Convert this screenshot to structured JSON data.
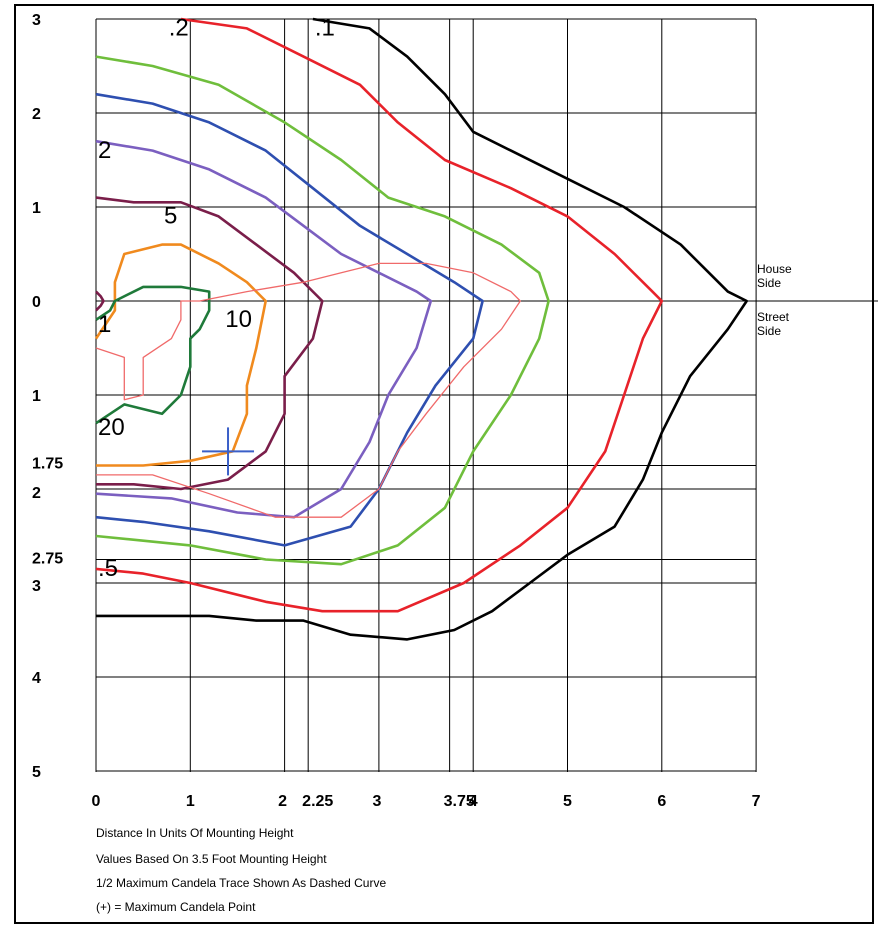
{
  "chart_data": {
    "type": "line",
    "x_ticks": [
      {
        "value": 0,
        "label": "0"
      },
      {
        "value": 1,
        "label": "1"
      },
      {
        "value": 2,
        "label": "2"
      },
      {
        "value": 2.25,
        "label": "2.25"
      },
      {
        "value": 3,
        "label": "3"
      },
      {
        "value": 3.75,
        "label": "3.75"
      },
      {
        "value": 4,
        "label": "4"
      },
      {
        "value": 5,
        "label": "5"
      },
      {
        "value": 6,
        "label": "6"
      },
      {
        "value": 7,
        "label": "7"
      }
    ],
    "y_ticks": [
      {
        "value": -3,
        "label": "3"
      },
      {
        "value": -2,
        "label": "2"
      },
      {
        "value": -1,
        "label": "1"
      },
      {
        "value": 0,
        "label": "0"
      },
      {
        "value": 1,
        "label": "1"
      },
      {
        "value": 1.75,
        "label": "1.75"
      },
      {
        "value": 2,
        "label": "2"
      },
      {
        "value": 2.75,
        "label": "2.75"
      },
      {
        "value": 3,
        "label": "3"
      },
      {
        "value": 4,
        "label": "4"
      },
      {
        "value": 5,
        "label": "5"
      }
    ],
    "xlim": [
      0,
      7.5
    ],
    "ylim": [
      -3,
      5
    ],
    "series": [
      {
        "label": ".1",
        "color": "#000000",
        "points": [
          [
            2.3,
            -3.0
          ],
          [
            2.9,
            -2.9
          ],
          [
            3.3,
            -2.6
          ],
          [
            3.7,
            -2.2
          ],
          [
            4.0,
            -1.8
          ],
          [
            4.4,
            -1.6
          ],
          [
            5.0,
            -1.3
          ],
          [
            5.6,
            -1.0
          ],
          [
            6.2,
            -0.6
          ],
          [
            6.7,
            -0.1
          ],
          [
            6.9,
            0.0
          ],
          [
            6.7,
            0.3
          ],
          [
            6.3,
            0.8
          ],
          [
            6.0,
            1.4
          ],
          [
            5.8,
            1.9
          ],
          [
            5.5,
            2.4
          ],
          [
            5.0,
            2.7
          ],
          [
            4.6,
            3.0
          ],
          [
            4.2,
            3.3
          ],
          [
            3.8,
            3.5
          ],
          [
            3.3,
            3.6
          ],
          [
            2.7,
            3.55
          ],
          [
            2.2,
            3.4
          ],
          [
            1.7,
            3.4
          ],
          [
            1.2,
            3.35
          ],
          [
            0.6,
            3.35
          ],
          [
            0.0,
            3.35
          ]
        ]
      },
      {
        "label": ".2",
        "color": "#e8222a",
        "points": [
          [
            0.9,
            -3.0
          ],
          [
            1.6,
            -2.9
          ],
          [
            2.2,
            -2.6
          ],
          [
            2.8,
            -2.3
          ],
          [
            3.2,
            -1.9
          ],
          [
            3.7,
            -1.5
          ],
          [
            4.4,
            -1.2
          ],
          [
            5.0,
            -0.9
          ],
          [
            5.5,
            -0.5
          ],
          [
            5.9,
            -0.1
          ],
          [
            6.0,
            0.0
          ],
          [
            5.8,
            0.4
          ],
          [
            5.6,
            1.0
          ],
          [
            5.4,
            1.6
          ],
          [
            5.0,
            2.2
          ],
          [
            4.5,
            2.6
          ],
          [
            3.9,
            3.0
          ],
          [
            3.2,
            3.3
          ],
          [
            2.4,
            3.3
          ],
          [
            1.8,
            3.2
          ],
          [
            1.0,
            3.0
          ],
          [
            0.5,
            2.9
          ],
          [
            0.0,
            2.85
          ]
        ]
      },
      {
        "label": "",
        "color": "#6fbe3c",
        "points": [
          [
            0.0,
            -2.6
          ],
          [
            0.6,
            -2.5
          ],
          [
            1.3,
            -2.3
          ],
          [
            2.0,
            -1.9
          ],
          [
            2.6,
            -1.5
          ],
          [
            3.1,
            -1.1
          ],
          [
            3.7,
            -0.9
          ],
          [
            4.3,
            -0.6
          ],
          [
            4.7,
            -0.3
          ],
          [
            4.8,
            0.0
          ],
          [
            4.7,
            0.4
          ],
          [
            4.4,
            1.0
          ],
          [
            4.0,
            1.6
          ],
          [
            3.7,
            2.2
          ],
          [
            3.2,
            2.6
          ],
          [
            2.6,
            2.8
          ],
          [
            1.8,
            2.75
          ],
          [
            1.0,
            2.6
          ],
          [
            0.5,
            2.55
          ],
          [
            0.0,
            2.5
          ]
        ]
      },
      {
        "label": "",
        "color": "#2e4fb0",
        "points": [
          [
            0.0,
            -2.2
          ],
          [
            0.6,
            -2.1
          ],
          [
            1.2,
            -1.9
          ],
          [
            1.8,
            -1.6
          ],
          [
            2.3,
            -1.2
          ],
          [
            2.8,
            -0.8
          ],
          [
            3.3,
            -0.5
          ],
          [
            3.8,
            -0.2
          ],
          [
            4.1,
            0.0
          ],
          [
            4.0,
            0.4
          ],
          [
            3.6,
            0.9
          ],
          [
            3.3,
            1.4
          ],
          [
            3.0,
            2.0
          ],
          [
            2.7,
            2.4
          ],
          [
            2.0,
            2.6
          ],
          [
            1.2,
            2.45
          ],
          [
            0.5,
            2.35
          ],
          [
            0.0,
            2.3
          ]
        ]
      },
      {
        "label": "2",
        "color": "#7b5fc0",
        "points": [
          [
            0.0,
            -1.7
          ],
          [
            0.6,
            -1.6
          ],
          [
            1.2,
            -1.4
          ],
          [
            1.8,
            -1.1
          ],
          [
            2.2,
            -0.8
          ],
          [
            2.6,
            -0.5
          ],
          [
            3.0,
            -0.3
          ],
          [
            3.4,
            -0.1
          ],
          [
            3.55,
            0.0
          ],
          [
            3.4,
            0.5
          ],
          [
            3.1,
            1.0
          ],
          [
            2.9,
            1.5
          ],
          [
            2.6,
            2.0
          ],
          [
            2.1,
            2.3
          ],
          [
            1.5,
            2.25
          ],
          [
            0.8,
            2.1
          ],
          [
            0.0,
            2.05
          ]
        ]
      },
      {
        "label": "5",
        "color": "#7a1e4a",
        "points": [
          [
            0.0,
            -1.1
          ],
          [
            0.4,
            -1.05
          ],
          [
            0.9,
            -1.05
          ],
          [
            1.3,
            -0.9
          ],
          [
            1.7,
            -0.6
          ],
          [
            2.1,
            -0.3
          ],
          [
            2.4,
            0.0
          ],
          [
            2.3,
            0.4
          ],
          [
            2.0,
            0.8
          ],
          [
            2.0,
            1.2
          ],
          [
            1.8,
            1.6
          ],
          [
            1.4,
            1.9
          ],
          [
            0.9,
            2.0
          ],
          [
            0.4,
            1.95
          ],
          [
            0.0,
            1.95
          ]
        ]
      },
      {
        "label": "10",
        "color": "#f08a1e",
        "points": [
          [
            0.0,
            0.4
          ],
          [
            0.2,
            0.1
          ],
          [
            0.2,
            -0.2
          ],
          [
            0.3,
            -0.5
          ],
          [
            0.7,
            -0.6
          ],
          [
            0.9,
            -0.6
          ],
          [
            1.3,
            -0.4
          ],
          [
            1.6,
            -0.2
          ],
          [
            1.8,
            0.0
          ],
          [
            1.7,
            0.5
          ],
          [
            1.6,
            0.9
          ],
          [
            1.6,
            1.2
          ],
          [
            1.45,
            1.6
          ],
          [
            1.0,
            1.7
          ],
          [
            0.5,
            1.75
          ],
          [
            0.0,
            1.75
          ]
        ]
      },
      {
        "label": "20",
        "color": "#1f7a3a",
        "points": [
          [
            0.0,
            1.3
          ],
          [
            0.3,
            1.1
          ],
          [
            0.7,
            1.2
          ],
          [
            0.9,
            1.0
          ],
          [
            1.0,
            0.7
          ],
          [
            1.0,
            0.4
          ],
          [
            1.1,
            0.3
          ],
          [
            1.2,
            0.1
          ],
          [
            1.2,
            -0.1
          ],
          [
            0.9,
            -0.15
          ],
          [
            0.5,
            -0.15
          ],
          [
            0.2,
            0.0
          ],
          [
            0.15,
            0.1
          ],
          [
            0.0,
            0.2
          ]
        ]
      },
      {
        "label": "1",
        "color": "#7a1e4a",
        "points": [
          [
            0.0,
            0.1
          ],
          [
            0.05,
            0.05
          ],
          [
            0.08,
            0.0
          ],
          [
            0.05,
            -0.05
          ],
          [
            0.0,
            -0.1
          ]
        ]
      },
      {
        "label": "",
        "color": "#f06a6a",
        "points": [
          [
            0.0,
            0.5
          ],
          [
            0.3,
            0.6
          ],
          [
            0.3,
            1.0
          ],
          [
            0.3,
            1.05
          ],
          [
            0.5,
            1.0
          ],
          [
            0.5,
            0.6
          ],
          [
            0.8,
            0.4
          ],
          [
            0.9,
            0.2
          ],
          [
            0.9,
            0.0
          ],
          [
            1.1,
            0.0
          ],
          [
            1.6,
            -0.1
          ],
          [
            2.2,
            -0.2
          ],
          [
            2.6,
            -0.3
          ],
          [
            3.0,
            -0.4
          ],
          [
            3.5,
            -0.4
          ],
          [
            4.0,
            -0.3
          ],
          [
            4.4,
            -0.1
          ],
          [
            4.5,
            0.0
          ],
          [
            4.3,
            0.3
          ],
          [
            3.9,
            0.7
          ],
          [
            3.5,
            1.2
          ],
          [
            3.2,
            1.6
          ],
          [
            3.0,
            2.0
          ],
          [
            2.6,
            2.3
          ],
          [
            1.9,
            2.3
          ],
          [
            1.2,
            2.05
          ],
          [
            0.6,
            1.85
          ],
          [
            0.0,
            1.85
          ]
        ]
      }
    ],
    "max_candela_point": {
      "x": 1.4,
      "y": 1.6,
      "symbol": "+"
    },
    "side_labels": {
      "upper": "House\nSide",
      "lower": "Street\nSide"
    },
    "notes": [
      "Distance In Units Of Mounting Height",
      "Values Based On 3.5 Foot Mounting Height",
      "1/2 Maximum Candela Trace Shown As Dashed Curve",
      "(+) = Maximum Candela Point"
    ],
    "contour_labels": [
      {
        "text": ".2",
        "x": 0.75,
        "y": -2.95
      },
      {
        "text": ".1",
        "x": 2.3,
        "y": -2.95
      },
      {
        "text": "2",
        "x": 0.0,
        "y": -1.65
      },
      {
        "text": "5",
        "x": 0.7,
        "y": -0.95
      },
      {
        "text": "10",
        "x": 1.35,
        "y": 0.15
      },
      {
        "text": "1",
        "x": 0.0,
        "y": 0.2
      },
      {
        "text": "20",
        "x": 0.0,
        "y": 1.3
      },
      {
        "text": ".5",
        "x": 0.0,
        "y": 2.8
      }
    ]
  }
}
